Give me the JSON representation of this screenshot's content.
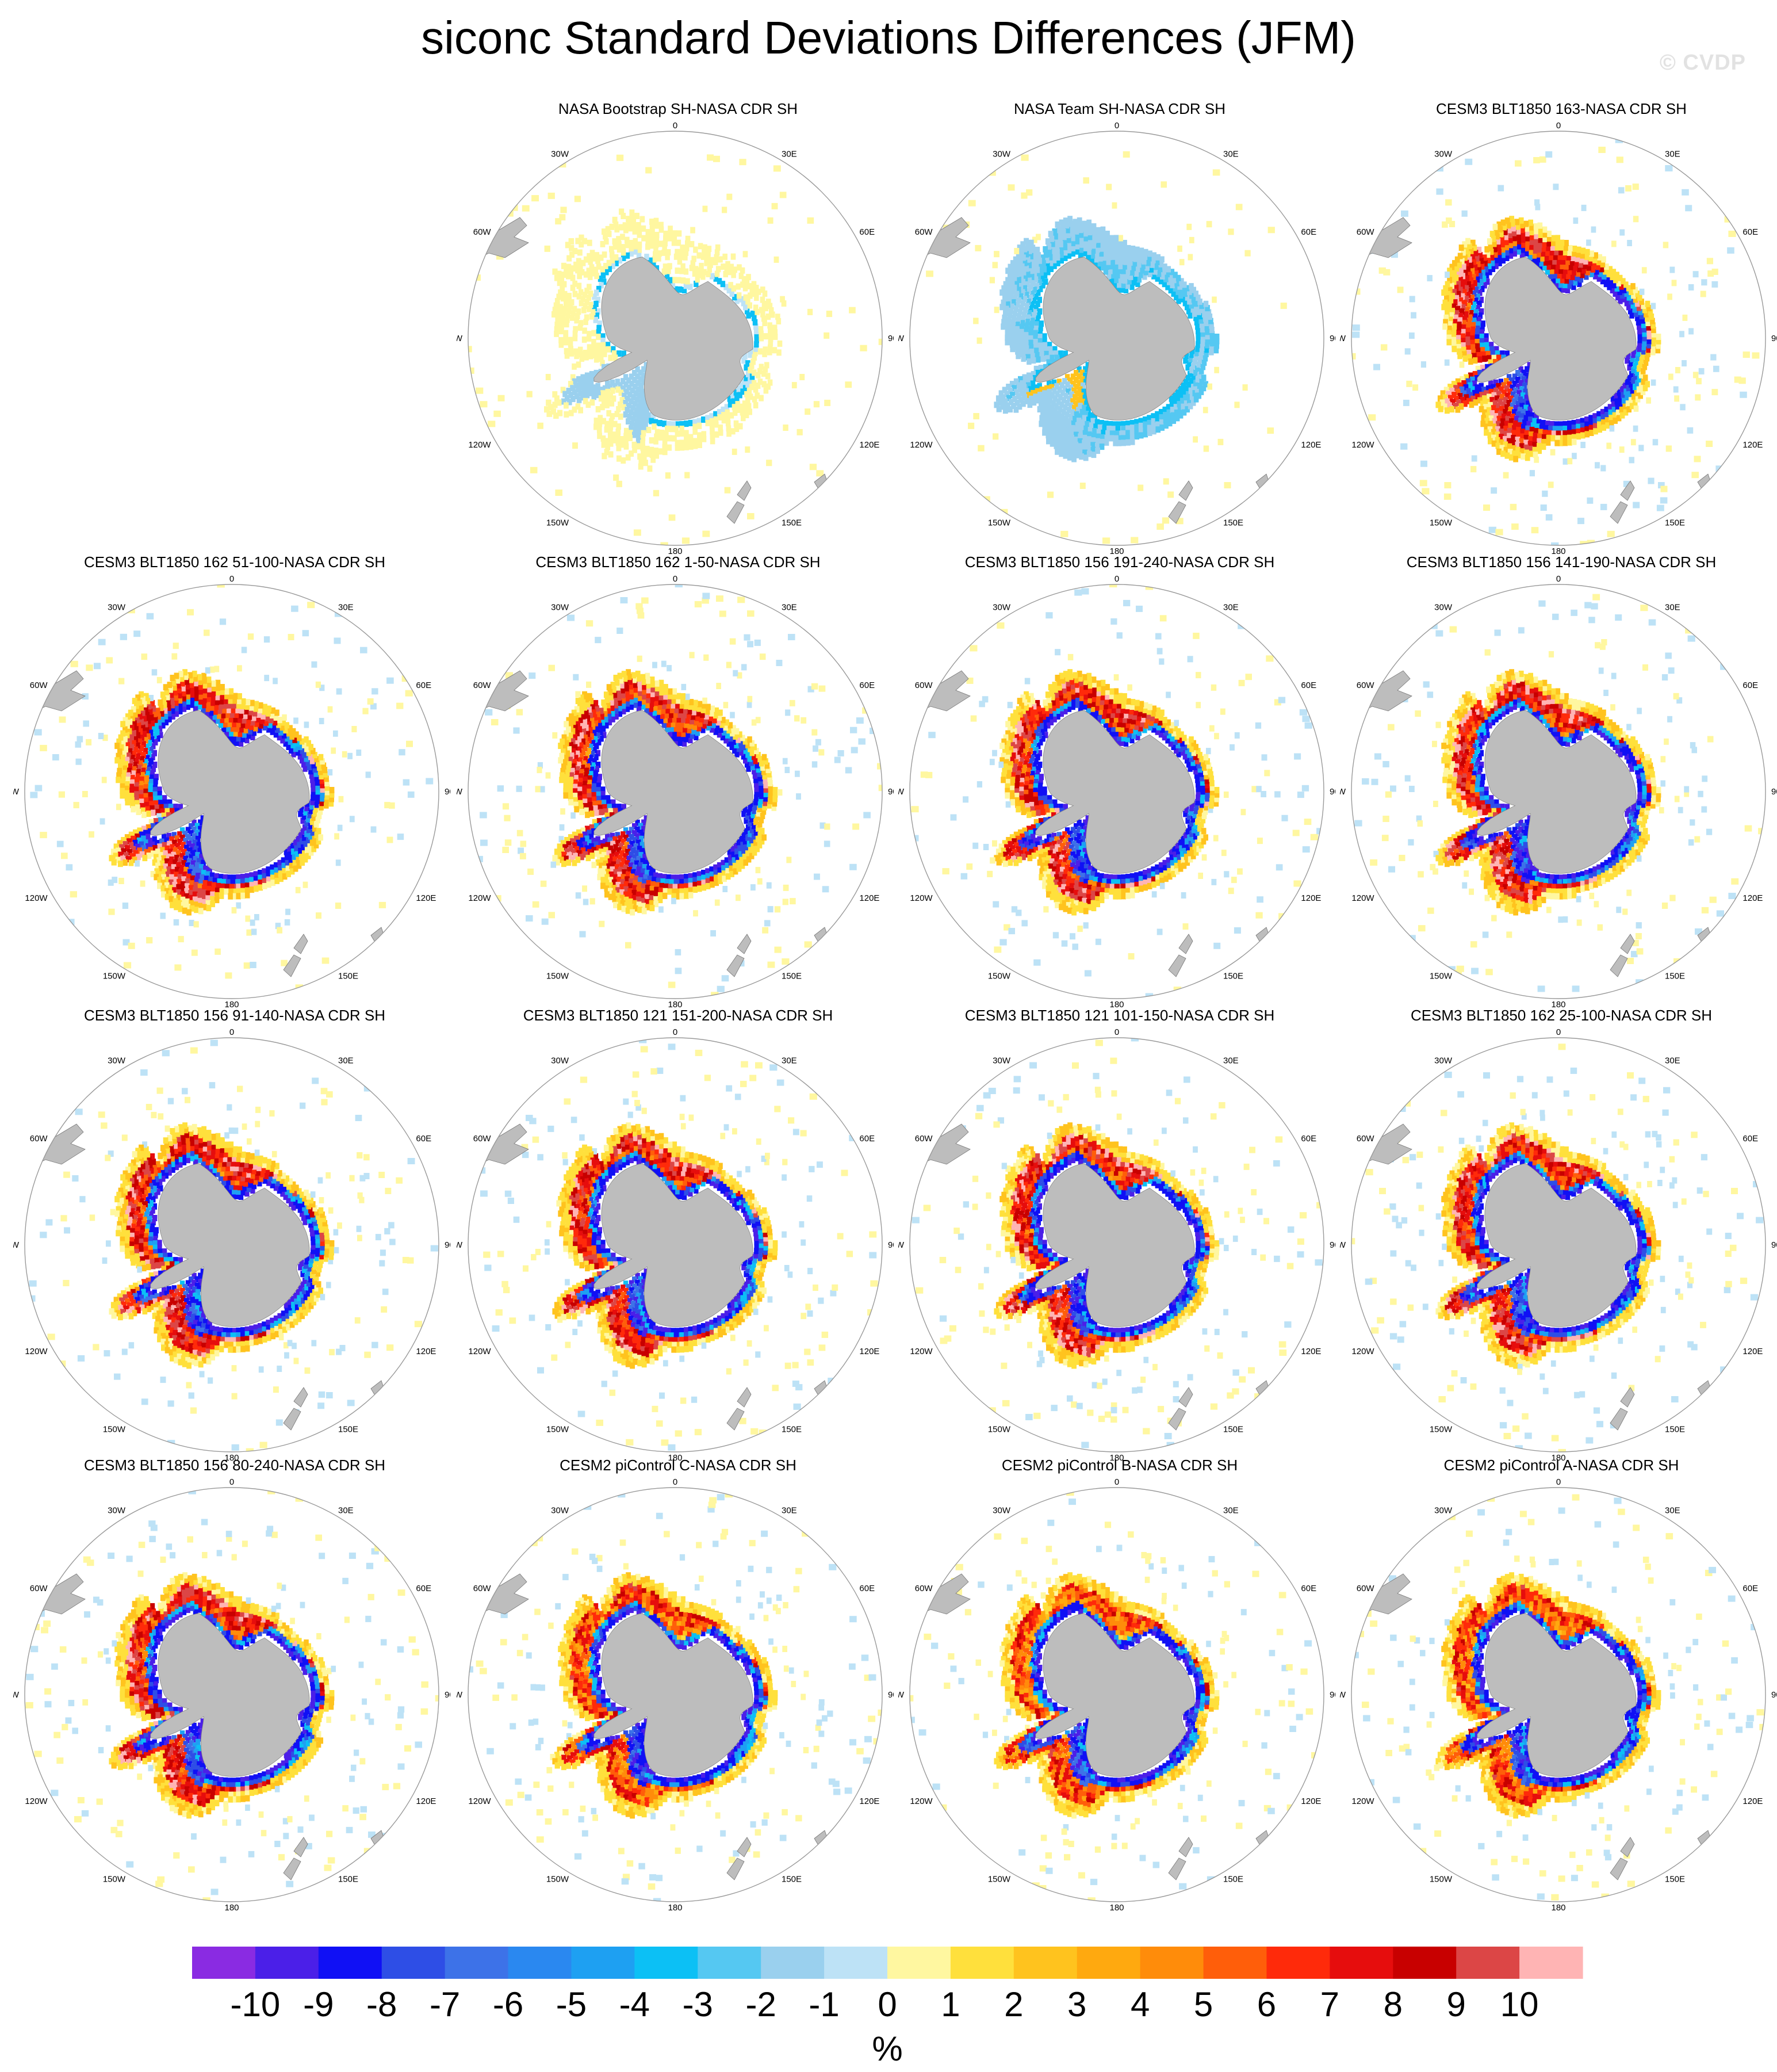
{
  "title": "siconc Standard Deviations Differences (JFM)",
  "watermark": "© CVDP",
  "units": "%",
  "longitude_labels": [
    "0",
    "30E",
    "60E",
    "90E",
    "120E",
    "150E",
    "180",
    "150W",
    "120W",
    "90W",
    "60W",
    "30W"
  ],
  "panels": [
    {
      "row": 0,
      "col": 1,
      "title": "NASA Bootstrap SH-NASA CDR SH",
      "pattern": "bootstrap"
    },
    {
      "row": 0,
      "col": 2,
      "title": "NASA Team SH-NASA CDR SH",
      "pattern": "team"
    },
    {
      "row": 0,
      "col": 3,
      "title": "CESM3 BLT1850 163-NASA CDR SH",
      "pattern": "model"
    },
    {
      "row": 1,
      "col": 0,
      "title": "CESM3 BLT1850 162 51-100-NASA CDR SH",
      "pattern": "model"
    },
    {
      "row": 1,
      "col": 1,
      "title": "CESM3 BLT1850 162 1-50-NASA CDR SH",
      "pattern": "model"
    },
    {
      "row": 1,
      "col": 2,
      "title": "CESM3 BLT1850 156 191-240-NASA CDR SH",
      "pattern": "model"
    },
    {
      "row": 1,
      "col": 3,
      "title": "CESM3 BLT1850 156 141-190-NASA CDR SH",
      "pattern": "model"
    },
    {
      "row": 2,
      "col": 0,
      "title": "CESM3 BLT1850 156 91-140-NASA CDR SH",
      "pattern": "model"
    },
    {
      "row": 2,
      "col": 1,
      "title": "CESM3 BLT1850 121 151-200-NASA CDR SH",
      "pattern": "model"
    },
    {
      "row": 2,
      "col": 2,
      "title": "CESM3 BLT1850 121 101-150-NASA CDR SH",
      "pattern": "model"
    },
    {
      "row": 2,
      "col": 3,
      "title": "CESM3 BLT1850 162 25-100-NASA CDR SH",
      "pattern": "model"
    },
    {
      "row": 3,
      "col": 0,
      "title": "CESM3 BLT1850 156 80-240-NASA CDR SH",
      "pattern": "model"
    },
    {
      "row": 3,
      "col": 1,
      "title": "CESM2 piControl C-NASA CDR SH",
      "pattern": "cesm2"
    },
    {
      "row": 3,
      "col": 2,
      "title": "CESM2 piControl B-NASA CDR SH",
      "pattern": "cesm2"
    },
    {
      "row": 3,
      "col": 3,
      "title": "CESM2 piControl A-NASA CDR SH",
      "pattern": "cesm2"
    }
  ],
  "colorbar": {
    "labels": [
      "-10",
      "-9",
      "-8",
      "-7",
      "-6",
      "-5",
      "-4",
      "-3",
      "-2",
      "-1",
      "0",
      "1",
      "2",
      "3",
      "4",
      "5",
      "6",
      "7",
      "8",
      "9",
      "10"
    ],
    "colors": [
      "#8a2be2",
      "#4b1fe8",
      "#1010f5",
      "#2e4ee6",
      "#3d72e8",
      "#2a88f0",
      "#1ea0f2",
      "#0cc0f5",
      "#55c8f2",
      "#9ad0ee",
      "#bde2f6",
      "#fff7a0",
      "#ffe03c",
      "#ffc31e",
      "#ffa90f",
      "#ff8c0a",
      "#ff5e0a",
      "#ff2a0a",
      "#e60d0d",
      "#c80000",
      "#dc4646",
      "#ffb4b4"
    ]
  }
}
